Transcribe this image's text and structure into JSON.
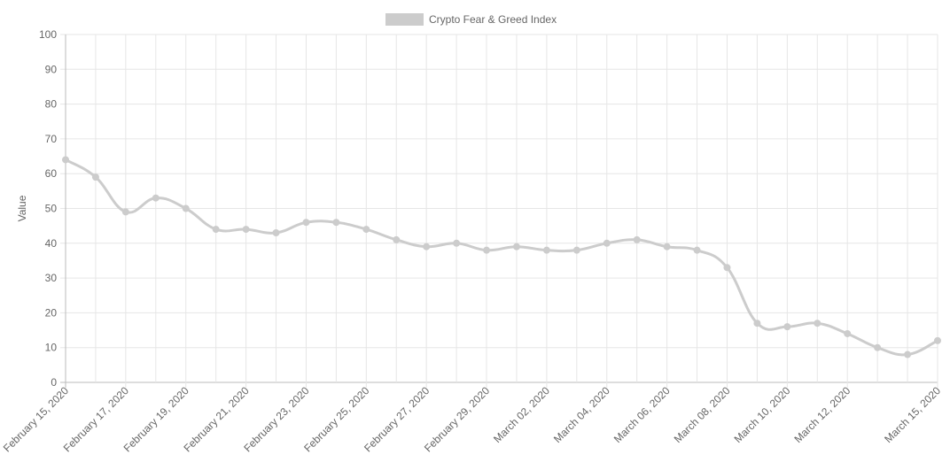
{
  "chart_data": {
    "type": "line",
    "ylabel": "Value",
    "ylim": [
      0,
      100
    ],
    "y_ticks": [
      "0",
      "10",
      "20",
      "30",
      "40",
      "50",
      "60",
      "70",
      "80",
      "90",
      "100"
    ],
    "x": [
      "2020-02-15",
      "2020-02-16",
      "2020-02-17",
      "2020-02-18",
      "2020-02-19",
      "2020-02-20",
      "2020-02-21",
      "2020-02-22",
      "2020-02-23",
      "2020-02-24",
      "2020-02-25",
      "2020-02-26",
      "2020-02-27",
      "2020-02-28",
      "2020-02-29",
      "2020-03-01",
      "2020-03-02",
      "2020-03-03",
      "2020-03-04",
      "2020-03-05",
      "2020-03-06",
      "2020-03-07",
      "2020-03-08",
      "2020-03-09",
      "2020-03-10",
      "2020-03-11",
      "2020-03-12",
      "2020-03-13",
      "2020-03-14",
      "2020-03-15"
    ],
    "x_ticks": [
      "February 15, 2020",
      "February 17, 2020",
      "February 19, 2020",
      "February 21, 2020",
      "February 23, 2020",
      "February 25, 2020",
      "February 27, 2020",
      "February 29, 2020",
      "March 02, 2020",
      "March 04, 2020",
      "March 06, 2020",
      "March 08, 2020",
      "March 10, 2020",
      "March 12, 2020",
      "March 15, 2020"
    ],
    "x_tick_dates": [
      "2020-02-15",
      "2020-02-17",
      "2020-02-19",
      "2020-02-21",
      "2020-02-23",
      "2020-02-25",
      "2020-02-27",
      "2020-02-29",
      "2020-03-02",
      "2020-03-04",
      "2020-03-06",
      "2020-03-08",
      "2020-03-10",
      "2020-03-12",
      "2020-03-15"
    ],
    "series": [
      {
        "name": "Crypto Fear & Greed Index",
        "color": "#cccccc",
        "values": [
          64,
          59,
          49,
          53,
          50,
          44,
          44,
          43,
          46,
          46,
          44,
          41,
          39,
          40,
          38,
          39,
          38,
          38,
          40,
          41,
          39,
          38,
          33,
          17,
          16,
          17,
          14,
          10,
          8,
          12
        ]
      }
    ],
    "legend_position": "top-center",
    "grid": true
  }
}
